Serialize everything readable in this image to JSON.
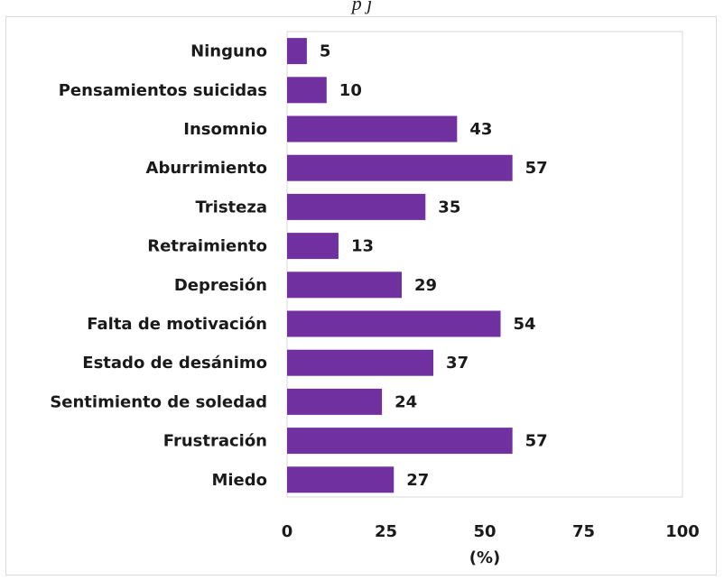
{
  "header": {
    "clipped_title": "p                   j"
  },
  "chart_data": {
    "type": "bar",
    "orientation": "horizontal",
    "categories": [
      "Ninguno",
      "Pensamientos suicidas",
      "Insomnio",
      "Aburrimiento",
      "Tristeza",
      "Retraimiento",
      "Depresión",
      "Falta de motivación",
      "Estado de desánimo",
      "Sentimiento de soledad",
      "Frustración",
      "Miedo"
    ],
    "values": [
      5,
      10,
      43,
      57,
      35,
      13,
      29,
      54,
      37,
      24,
      57,
      27
    ],
    "xlim": [
      0,
      100
    ],
    "xticks": [
      0,
      25,
      50,
      75,
      100
    ],
    "xlabel": "(%)",
    "bar_color": "#7030a0",
    "grid": false,
    "legend": "none"
  }
}
